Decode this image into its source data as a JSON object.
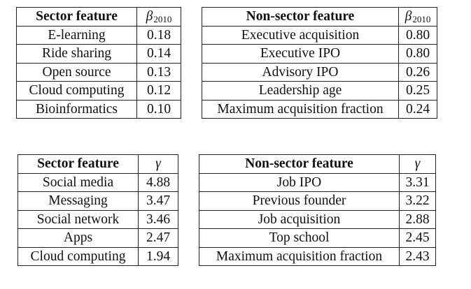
{
  "tables": [
    {
      "header": [
        "Sector feature",
        "β",
        "2010"
      ],
      "rows": [
        [
          "E-learning",
          "0.18"
        ],
        [
          "Ride sharing",
          "0.14"
        ],
        [
          "Open source",
          "0.13"
        ],
        [
          "Cloud computing",
          "0.12"
        ],
        [
          "Bioinformatics",
          "0.10"
        ]
      ]
    },
    {
      "header": [
        "Non-sector feature",
        "β",
        "2010"
      ],
      "rows": [
        [
          "Executive acquisition",
          "0.80"
        ],
        [
          "Executive IPO",
          "0.80"
        ],
        [
          "Advisory IPO",
          "0.26"
        ],
        [
          "Leadership age",
          "0.25"
        ],
        [
          "Maximum acquisition fraction",
          "0.24"
        ]
      ]
    },
    {
      "header": [
        "Sector feature",
        "γ"
      ],
      "rows": [
        [
          "Social media",
          "4.88"
        ],
        [
          "Messaging",
          "3.47"
        ],
        [
          "Social network",
          "3.46"
        ],
        [
          "Apps",
          "2.47"
        ],
        [
          "Cloud computing",
          "1.94"
        ]
      ]
    },
    {
      "header": [
        "Non-sector feature",
        "γ"
      ],
      "rows": [
        [
          "Job IPO",
          "3.31"
        ],
        [
          "Previous founder",
          "3.22"
        ],
        [
          "Job acquisition",
          "2.88"
        ],
        [
          "Top school",
          "2.45"
        ],
        [
          "Maximum acquisition fraction",
          "2.43"
        ]
      ]
    }
  ]
}
